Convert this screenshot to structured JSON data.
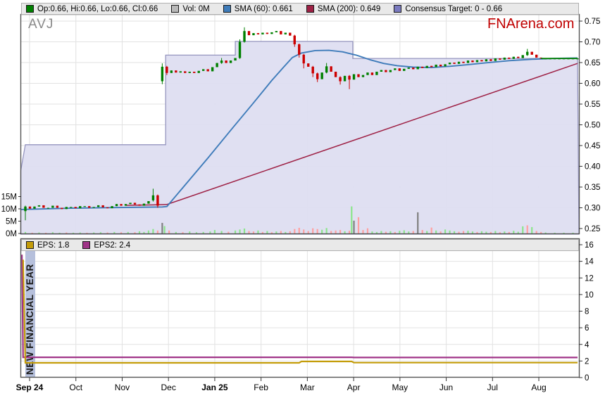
{
  "header": {
    "ticker": "AVJ",
    "brand": "FNArena.com"
  },
  "main_legend": [
    {
      "label": "Op:0.66, Hi:0.66, Lo:0.66, Cl:0.66",
      "color": "#008000"
    },
    {
      "label": "Vol: 0M",
      "color": "#b8b8b8"
    },
    {
      "label": "SMA (60): 0.661",
      "color": "#3f7cba"
    },
    {
      "label": "SMA (200): 0.649",
      "color": "#9e2145"
    },
    {
      "label": "Consensus Target: 0 - 0.66",
      "color": "#7b7bc0"
    }
  ],
  "lower_legend": [
    {
      "label": "EPS: 1.8",
      "color": "#c49c08"
    },
    {
      "label": "EPS2: 2.4",
      "color": "#a03488"
    }
  ],
  "colors": {
    "candle_up": "#008000",
    "candle_down": "#cc0000",
    "vol_up": "#8ce68c",
    "vol_down": "#ffa0a0",
    "vol_neutral": "#808080",
    "sma60": "#3f7cba",
    "sma200": "#9e2145",
    "band_fill": "#dfdff2",
    "band_edge": "#9090bc",
    "eps": "#c49c08",
    "eps2": "#a03488",
    "nfy_band": "#b6c0dc",
    "grid": "#e2e2e2",
    "border": "#555555",
    "brand_red": "#c00000"
  },
  "chart_data": {
    "type": "candlestick",
    "title": "AVJ",
    "x_axis": {
      "months": [
        {
          "label": "Sep 24",
          "bold": true
        },
        {
          "label": "Oct",
          "bold": false
        },
        {
          "label": "Nov",
          "bold": false
        },
        {
          "label": "Dec",
          "bold": false
        },
        {
          "label": "Jan 25",
          "bold": true
        },
        {
          "label": "Feb",
          "bold": false
        },
        {
          "label": "Mar",
          "bold": false
        },
        {
          "label": "Apr",
          "bold": false
        },
        {
          "label": "May",
          "bold": false
        },
        {
          "label": "Jun",
          "bold": false
        },
        {
          "label": "Jul",
          "bold": false
        },
        {
          "label": "Aug",
          "bold": false
        }
      ]
    },
    "price_axis": {
      "range": [
        0.25,
        0.77
      ],
      "ticks": [
        0.75,
        0.7,
        0.65,
        0.6,
        0.55,
        0.5,
        0.45,
        0.4,
        0.35,
        0.3,
        0.25
      ]
    },
    "volume_axis": {
      "ticks": [
        {
          "label": "15M",
          "value": 15
        },
        {
          "label": "10M",
          "value": 10
        },
        {
          "label": "5M",
          "value": 5
        },
        {
          "label": "0M",
          "value": 0
        }
      ]
    },
    "eps_axis": {
      "range": [
        0,
        16.5
      ],
      "ticks": [
        16,
        14,
        12,
        10,
        8,
        6,
        4,
        2,
        0
      ]
    },
    "consensus_band": {
      "note": "0 - 0.66",
      "points": [
        [
          -2,
          0.39
        ],
        [
          0,
          0.452
        ],
        [
          61.5,
          0.452
        ],
        [
          61.5,
          0.668
        ],
        [
          92,
          0.668
        ],
        [
          92,
          0.701
        ],
        [
          143.5,
          0.701
        ],
        [
          143.5,
          0.66
        ],
        [
          242,
          0.66
        ]
      ]
    },
    "sma60": {
      "name": "SMA (60)",
      "value": 0.661,
      "points": [
        [
          -2,
          0.296
        ],
        [
          20,
          0.299
        ],
        [
          45,
          0.301
        ],
        [
          60,
          0.302
        ],
        [
          62,
          0.303
        ],
        [
          70,
          0.355
        ],
        [
          80,
          0.42
        ],
        [
          90,
          0.487
        ],
        [
          100,
          0.553
        ],
        [
          108,
          0.607
        ],
        [
          113,
          0.638
        ],
        [
          117,
          0.662
        ],
        [
          121,
          0.673
        ],
        [
          127,
          0.679
        ],
        [
          133,
          0.6795
        ],
        [
          139,
          0.676
        ],
        [
          145,
          0.668
        ],
        [
          151,
          0.657
        ],
        [
          157,
          0.648
        ],
        [
          163,
          0.6425
        ],
        [
          170,
          0.639
        ],
        [
          178,
          0.638
        ],
        [
          186,
          0.641
        ],
        [
          194,
          0.645
        ],
        [
          202,
          0.6495
        ],
        [
          212,
          0.6545
        ],
        [
          222,
          0.658
        ],
        [
          232,
          0.66
        ],
        [
          242,
          0.661
        ]
      ]
    },
    "sma200": {
      "name": "SMA (200)",
      "value": 0.649,
      "points": [
        [
          44,
          0.306
        ],
        [
          56,
          0.307
        ],
        [
          62,
          0.308
        ],
        [
          242,
          0.648
        ]
      ]
    },
    "candles": [
      [
        0,
        0.292,
        0.303,
        0.27,
        0.305
      ],
      [
        2,
        0.303,
        0.298
      ],
      [
        4,
        0.298,
        0.303
      ],
      [
        6,
        0.303,
        0.306
      ],
      [
        8,
        0.306,
        0.3
      ],
      [
        10,
        0.3,
        0.3
      ],
      [
        12,
        0.3,
        0.305
      ],
      [
        14,
        0.305,
        0.3
      ],
      [
        16,
        0.3,
        0.297
      ],
      [
        18,
        0.297,
        0.302
      ],
      [
        20,
        0.302,
        0.302
      ],
      [
        22,
        0.302,
        0.299
      ],
      [
        24,
        0.299,
        0.304
      ],
      [
        26,
        0.304,
        0.304
      ],
      [
        28,
        0.304,
        0.3
      ],
      [
        30,
        0.3,
        0.302
      ],
      [
        32,
        0.302,
        0.306
      ],
      [
        34,
        0.306,
        0.301
      ],
      [
        36,
        0.301,
        0.299
      ],
      [
        38,
        0.299,
        0.304
      ],
      [
        40,
        0.304,
        0.309
      ],
      [
        42,
        0.309,
        0.305
      ],
      [
        44,
        0.305,
        0.309
      ],
      [
        46,
        0.309,
        0.312
      ],
      [
        48,
        0.312,
        0.308
      ],
      [
        50,
        0.308,
        0.305
      ],
      [
        52,
        0.305,
        0.31
      ],
      [
        54,
        0.31,
        0.316
      ],
      [
        56,
        0.318,
        0.33,
        0.315,
        0.346
      ],
      [
        58,
        0.33,
        0.305,
        0.3,
        0.332
      ],
      [
        60,
        0.605,
        0.64,
        0.598,
        0.648
      ],
      [
        62,
        0.64,
        0.625,
        0.62,
        0.642
      ],
      [
        64,
        0.625,
        0.631
      ],
      [
        66,
        0.631,
        0.626
      ],
      [
        68,
        0.626,
        0.629
      ],
      [
        70,
        0.629,
        0.625
      ],
      [
        72,
        0.625,
        0.628
      ],
      [
        74,
        0.628,
        0.625
      ],
      [
        76,
        0.625,
        0.63
      ],
      [
        78,
        0.63,
        0.634
      ],
      [
        80,
        0.634,
        0.629
      ],
      [
        82,
        0.629,
        0.639
      ],
      [
        84,
        0.639,
        0.649
      ],
      [
        86,
        0.649,
        0.655,
        0.647,
        0.661
      ],
      [
        88,
        0.655,
        0.649
      ],
      [
        90,
        0.649,
        0.655
      ],
      [
        92,
        0.655,
        0.661
      ],
      [
        94,
        0.661,
        0.7,
        0.659,
        0.706
      ],
      [
        96,
        0.7,
        0.726,
        0.698,
        0.735
      ],
      [
        98,
        0.726,
        0.716
      ],
      [
        100,
        0.716,
        0.721
      ],
      [
        102,
        0.721,
        0.718
      ],
      [
        104,
        0.718,
        0.722
      ],
      [
        106,
        0.722,
        0.719
      ],
      [
        108,
        0.719,
        0.723
      ],
      [
        110,
        0.723,
        0.726
      ],
      [
        112,
        0.726,
        0.718
      ],
      [
        114,
        0.718,
        0.722
      ],
      [
        116,
        0.722,
        0.715
      ],
      [
        118,
        0.715,
        0.694,
        0.688,
        0.717
      ],
      [
        120,
        0.694,
        0.669,
        0.662,
        0.696
      ],
      [
        122,
        0.669,
        0.648,
        0.636,
        0.671
      ],
      [
        124,
        0.648,
        0.64
      ],
      [
        126,
        0.64,
        0.624,
        0.615,
        0.642
      ],
      [
        128,
        0.624,
        0.61,
        0.603,
        0.626
      ],
      [
        130,
        0.61,
        0.626
      ],
      [
        132,
        0.626,
        0.641,
        0.624,
        0.649
      ],
      [
        134,
        0.641,
        0.628
      ],
      [
        136,
        0.628,
        0.615
      ],
      [
        138,
        0.615,
        0.605,
        0.597,
        0.617
      ],
      [
        140,
        0.605,
        0.618
      ],
      [
        142,
        0.618,
        0.609,
        0.586,
        0.62
      ],
      [
        144,
        0.609,
        0.622
      ],
      [
        146,
        0.622,
        0.615
      ],
      [
        148,
        0.615,
        0.62
      ],
      [
        150,
        0.62,
        0.626
      ],
      [
        152,
        0.626,
        0.62
      ],
      [
        154,
        0.62,
        0.628
      ],
      [
        156,
        0.628,
        0.632
      ],
      [
        158,
        0.632,
        0.627
      ],
      [
        160,
        0.627,
        0.632
      ],
      [
        162,
        0.632,
        0.636
      ],
      [
        164,
        0.636,
        0.63
      ],
      [
        166,
        0.63,
        0.635
      ],
      [
        168,
        0.635,
        0.638
      ],
      [
        170,
        0.638,
        0.634
      ],
      [
        172,
        0.634,
        0.64
      ],
      [
        174,
        0.64,
        0.637
      ],
      [
        176,
        0.637,
        0.642
      ],
      [
        178,
        0.642,
        0.639
      ],
      [
        180,
        0.639,
        0.645
      ],
      [
        182,
        0.645,
        0.641
      ],
      [
        184,
        0.641,
        0.646
      ],
      [
        186,
        0.646,
        0.65
      ],
      [
        188,
        0.65,
        0.647
      ],
      [
        190,
        0.647,
        0.652
      ],
      [
        192,
        0.652,
        0.649
      ],
      [
        194,
        0.649,
        0.655
      ],
      [
        196,
        0.655,
        0.651
      ],
      [
        198,
        0.651,
        0.656
      ],
      [
        200,
        0.656,
        0.653
      ],
      [
        202,
        0.653,
        0.658
      ],
      [
        204,
        0.658,
        0.654
      ],
      [
        206,
        0.654,
        0.66
      ],
      [
        208,
        0.66,
        0.657
      ],
      [
        210,
        0.657,
        0.662
      ],
      [
        212,
        0.662,
        0.659
      ],
      [
        214,
        0.659,
        0.664
      ],
      [
        216,
        0.664,
        0.661
      ],
      [
        218,
        0.661,
        0.668
      ],
      [
        220,
        0.668,
        0.676,
        0.666,
        0.683
      ],
      [
        222,
        0.676,
        0.669
      ],
      [
        224,
        0.669,
        0.662
      ],
      [
        226,
        0.662,
        0.66
      ],
      [
        228,
        0.66,
        0.66
      ],
      [
        230,
        0.66,
        0.66
      ],
      [
        232,
        0.66,
        0.66
      ],
      [
        234,
        0.66,
        0.66
      ],
      [
        236,
        0.66,
        0.66
      ],
      [
        238,
        0.66,
        0.66
      ],
      [
        240,
        0.66,
        0.66
      ],
      [
        242,
        0.66,
        0.66
      ]
    ],
    "last_price_line": {
      "from": 226,
      "to": 242,
      "price": 0.66
    },
    "volumes": [
      [
        0,
        0.6,
        "g"
      ],
      [
        3,
        0.3,
        "r"
      ],
      [
        6,
        0.4,
        "g"
      ],
      [
        9,
        0.3,
        "r"
      ],
      [
        12,
        0.5,
        "g"
      ],
      [
        15,
        0.3,
        "g"
      ],
      [
        18,
        0.4,
        "r"
      ],
      [
        21,
        0.3,
        "g"
      ],
      [
        24,
        0.4,
        "g"
      ],
      [
        27,
        0.3,
        "r"
      ],
      [
        30,
        0.4,
        "g"
      ],
      [
        33,
        0.5,
        "g"
      ],
      [
        36,
        0.4,
        "r"
      ],
      [
        39,
        0.6,
        "g"
      ],
      [
        42,
        0.5,
        "r"
      ],
      [
        45,
        0.6,
        "g"
      ],
      [
        48,
        0.5,
        "r"
      ],
      [
        50,
        0.9,
        "g"
      ],
      [
        52,
        0.6,
        "g"
      ],
      [
        54,
        1.2,
        "g"
      ],
      [
        56,
        1.8,
        "g"
      ],
      [
        58,
        1.2,
        "r"
      ],
      [
        60,
        4.3,
        "y"
      ],
      [
        61,
        3.0,
        "g"
      ],
      [
        63,
        1.2,
        "r"
      ],
      [
        66,
        0.6,
        "g"
      ],
      [
        69,
        0.5,
        "r"
      ],
      [
        72,
        0.8,
        "g"
      ],
      [
        75,
        0.5,
        "g"
      ],
      [
        78,
        0.6,
        "g"
      ],
      [
        81,
        0.8,
        "g"
      ],
      [
        83,
        1.4,
        "g"
      ],
      [
        86,
        1.0,
        "g"
      ],
      [
        89,
        0.7,
        "r"
      ],
      [
        92,
        1.2,
        "g"
      ],
      [
        94,
        1.6,
        "g"
      ],
      [
        96,
        2.0,
        "g"
      ],
      [
        98,
        1.0,
        "r"
      ],
      [
        100,
        0.8,
        "r"
      ],
      [
        102,
        1.2,
        "g"
      ],
      [
        104,
        0.6,
        "r"
      ],
      [
        106,
        1.0,
        "g"
      ],
      [
        108,
        0.5,
        "r"
      ],
      [
        110,
        0.8,
        "g"
      ],
      [
        112,
        1.0,
        "r"
      ],
      [
        114,
        0.6,
        "g"
      ],
      [
        116,
        0.9,
        "r"
      ],
      [
        118,
        1.8,
        "r"
      ],
      [
        120,
        2.3,
        "r"
      ],
      [
        122,
        1.6,
        "r"
      ],
      [
        124,
        1.0,
        "r"
      ],
      [
        126,
        2.1,
        "r"
      ],
      [
        128,
        1.8,
        "r"
      ],
      [
        130,
        1.5,
        "g"
      ],
      [
        132,
        2.2,
        "g"
      ],
      [
        134,
        1.0,
        "r"
      ],
      [
        136,
        1.2,
        "r"
      ],
      [
        138,
        1.4,
        "r"
      ],
      [
        140,
        0.9,
        "g"
      ],
      [
        142,
        1.1,
        "r"
      ],
      [
        143,
        11.0,
        "g"
      ],
      [
        144,
        5.2,
        "y"
      ],
      [
        146,
        6.6,
        "r"
      ],
      [
        148,
        1.4,
        "r"
      ],
      [
        150,
        2.1,
        "r"
      ],
      [
        152,
        0.8,
        "g"
      ],
      [
        154,
        0.6,
        "g"
      ],
      [
        156,
        1.0,
        "g"
      ],
      [
        158,
        0.7,
        "r"
      ],
      [
        160,
        0.9,
        "g"
      ],
      [
        162,
        0.6,
        "r"
      ],
      [
        164,
        1.1,
        "g"
      ],
      [
        166,
        1.3,
        "g"
      ],
      [
        168,
        0.8,
        "g"
      ],
      [
        170,
        1.0,
        "r"
      ],
      [
        172,
        8.6,
        "y"
      ],
      [
        174,
        1.4,
        "r"
      ],
      [
        176,
        1.0,
        "g"
      ],
      [
        178,
        2.4,
        "r"
      ],
      [
        180,
        1.2,
        "g"
      ],
      [
        182,
        0.8,
        "r"
      ],
      [
        184,
        1.6,
        "g"
      ],
      [
        186,
        1.2,
        "g"
      ],
      [
        188,
        0.9,
        "g"
      ],
      [
        190,
        0.7,
        "r"
      ],
      [
        192,
        1.0,
        "r"
      ],
      [
        194,
        1.1,
        "g"
      ],
      [
        196,
        0.8,
        "g"
      ],
      [
        198,
        0.6,
        "r"
      ],
      [
        200,
        0.9,
        "g"
      ],
      [
        202,
        0.7,
        "g"
      ],
      [
        204,
        0.6,
        "r"
      ],
      [
        206,
        1.0,
        "g"
      ],
      [
        208,
        0.5,
        "r"
      ],
      [
        210,
        0.8,
        "g"
      ],
      [
        212,
        0.6,
        "r"
      ],
      [
        214,
        1.1,
        "g"
      ],
      [
        216,
        0.7,
        "g"
      ],
      [
        218,
        2.9,
        "g"
      ],
      [
        220,
        3.3,
        "r"
      ],
      [
        222,
        2.6,
        "g"
      ],
      [
        224,
        1.0,
        "r"
      ],
      [
        226,
        0.6,
        "r"
      ],
      [
        228,
        0.4,
        "g"
      ],
      [
        232,
        0.3,
        "g"
      ],
      [
        236,
        0.3,
        "g"
      ],
      [
        240,
        0.3,
        "g"
      ]
    ],
    "eps": {
      "name": "EPS",
      "value": 1.8,
      "points": [
        [
          -1,
          14.2
        ],
        [
          0,
          1.78
        ],
        [
          120,
          1.78
        ],
        [
          121,
          1.95
        ],
        [
          143,
          1.95
        ],
        [
          144,
          1.8
        ],
        [
          242,
          1.8
        ]
      ]
    },
    "eps2": {
      "name": "EPS2",
      "value": 2.4,
      "points": [
        [
          -1.5,
          14.8
        ],
        [
          -1,
          2.45
        ],
        [
          143,
          2.45
        ],
        [
          144,
          2.42
        ],
        [
          242,
          2.42
        ]
      ]
    },
    "annotation": {
      "text": "NEW FINANCIAL YEAR"
    }
  }
}
